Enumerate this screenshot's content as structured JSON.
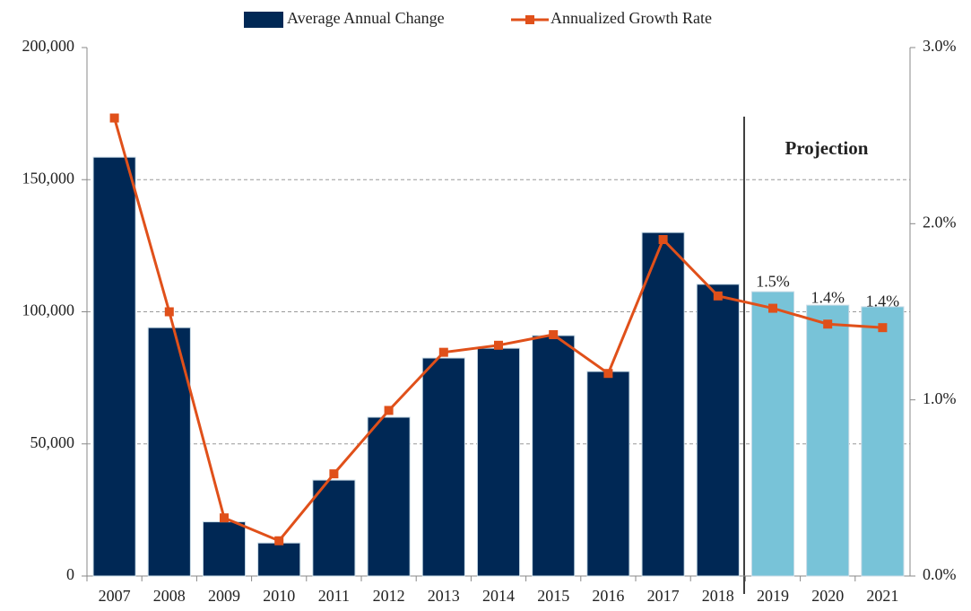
{
  "chart_data": {
    "type": "bar_line",
    "categories": [
      "2007",
      "2008",
      "2009",
      "2010",
      "2011",
      "2012",
      "2013",
      "2014",
      "2015",
      "2016",
      "2017",
      "2018",
      "2019",
      "2020",
      "2021"
    ],
    "series": [
      {
        "name": "Average Annual Change",
        "color": "#002855",
        "colors": [
          "#002855",
          "#002855",
          "#002855",
          "#002855",
          "#002855",
          "#002855",
          "#002855",
          "#002855",
          "#002855",
          "#002855",
          "#002855",
          "#002855",
          "#78c3d8",
          "#78c3d8",
          "#78c3d8"
        ],
        "values": [
          158500,
          94000,
          20500,
          12500,
          36300,
          60100,
          82500,
          86200,
          91000,
          77400,
          130000,
          110400,
          107600,
          102500,
          101900
        ]
      },
      {
        "name": "Annualized Growth Rate",
        "color": "#e0501a",
        "axis": "y2",
        "values": [
          2.6,
          1.5,
          0.33,
          0.2,
          0.58,
          0.94,
          1.27,
          1.31,
          1.37,
          1.15,
          1.91,
          1.59,
          1.52,
          1.43,
          1.41
        ],
        "value_labels": [
          null,
          null,
          null,
          null,
          null,
          null,
          null,
          null,
          null,
          null,
          null,
          null,
          "1.5%",
          "1.4%",
          "1.4%"
        ]
      }
    ],
    "annotation": "Projection",
    "ylim": [
      0,
      200000
    ],
    "yticks": [
      0,
      {
        "value": 50000,
        "label": "50,000"
      },
      {
        "value": 100000,
        "label": "100,000"
      },
      {
        "value": 150000,
        "label": "150,000"
      },
      {
        "value": 200000,
        "label": "200,000"
      }
    ],
    "y2lim": [
      0,
      3
    ],
    "y2ticks": [
      {
        "value": 0,
        "label": "0.0%"
      },
      {
        "value": 1,
        "label": "1.0%"
      },
      {
        "value": 2,
        "label": "2.0%"
      },
      {
        "value": 3,
        "label": "3.0%"
      }
    ],
    "grid": true
  }
}
